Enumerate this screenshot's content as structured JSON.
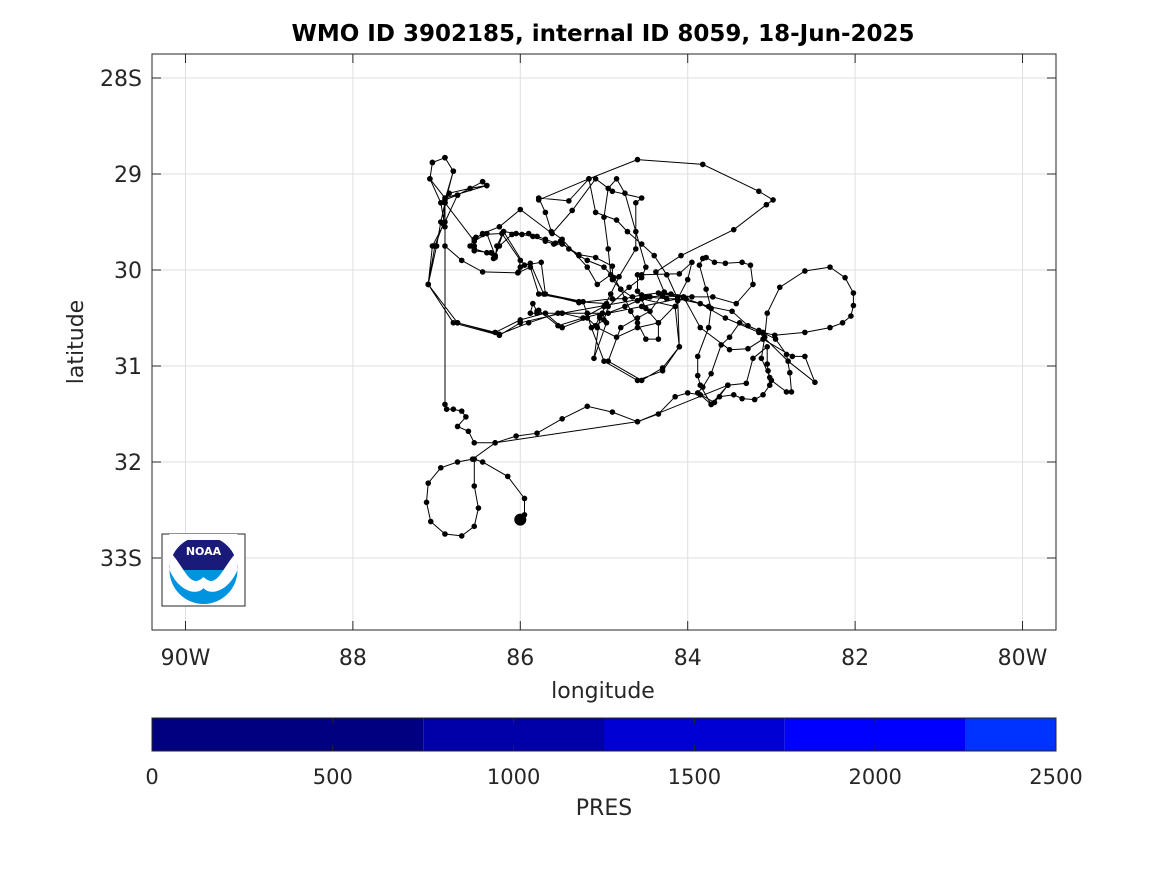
{
  "chart_data": {
    "type": "scatter",
    "title": "WMO ID 3902185, internal ID 8059, 18-Jun-2025",
    "xlabel": "longitude",
    "ylabel": "latitude",
    "xlim": [
      -90.4,
      -79.6
    ],
    "ylim": [
      -33.75,
      -27.75
    ],
    "x_ticks": [
      {
        "value": -90,
        "label": "90W"
      },
      {
        "value": -88,
        "label": "88"
      },
      {
        "value": -86,
        "label": "86"
      },
      {
        "value": -84,
        "label": "84"
      },
      {
        "value": -82,
        "label": "82"
      },
      {
        "value": -80,
        "label": "80W"
      }
    ],
    "y_ticks": [
      {
        "value": -28,
        "label": "28S"
      },
      {
        "value": -29,
        "label": "29"
      },
      {
        "value": -30,
        "label": "30"
      },
      {
        "value": -31,
        "label": "31"
      },
      {
        "value": -32,
        "label": "32"
      },
      {
        "value": -33,
        "label": "33S"
      }
    ],
    "grid": true,
    "marker_color": "#000000",
    "track": [
      [
        -85.78,
        -29.27
      ],
      [
        -85.18,
        -29.05
      ],
      [
        -84.6,
        -28.85
      ],
      [
        -83.82,
        -28.9
      ],
      [
        -83.15,
        -29.18
      ],
      [
        -82.98,
        -29.27
      ],
      [
        -83.06,
        -29.32
      ],
      [
        -83.45,
        -29.58
      ],
      [
        -84.08,
        -29.85
      ],
      [
        -84.38,
        -30.02
      ],
      [
        -84.28,
        -30.23
      ],
      [
        -84.12,
        -30.28
      ],
      [
        -84.12,
        -30.32
      ],
      [
        -84.02,
        -30.3
      ],
      [
        -83.75,
        -30.38
      ],
      [
        -83.47,
        -30.43
      ],
      [
        -83.28,
        -30.58
      ],
      [
        -83.1,
        -30.65
      ],
      [
        -82.96,
        -30.68
      ],
      [
        -82.6,
        -30.65
      ],
      [
        -82.3,
        -30.6
      ],
      [
        -82.15,
        -30.55
      ],
      [
        -82.05,
        -30.48
      ],
      [
        -82.02,
        -30.37
      ],
      [
        -82.02,
        -30.24
      ],
      [
        -82.12,
        -30.08
      ],
      [
        -82.3,
        -29.97
      ],
      [
        -82.6,
        -30.01
      ],
      [
        -82.9,
        -30.18
      ],
      [
        -83.05,
        -30.45
      ],
      [
        -83.08,
        -30.7
      ],
      [
        -83.12,
        -30.92
      ],
      [
        -83.0,
        -31.15
      ],
      [
        -82.82,
        -31.27
      ],
      [
        -82.76,
        -31.27
      ],
      [
        -82.78,
        -31.07
      ],
      [
        -82.82,
        -30.88
      ],
      [
        -82.95,
        -30.72
      ],
      [
        -83.15,
        -30.63
      ],
      [
        -83.38,
        -30.55
      ],
      [
        -83.5,
        -30.7
      ],
      [
        -83.6,
        -30.78
      ],
      [
        -83.72,
        -31.08
      ],
      [
        -83.82,
        -31.22
      ],
      [
        -83.88,
        -31.28
      ],
      [
        -83.68,
        -31.38
      ],
      [
        -83.52,
        -31.2
      ],
      [
        -83.3,
        -31.18
      ],
      [
        -83.22,
        -30.92
      ],
      [
        -83.05,
        -30.8
      ],
      [
        -83.05,
        -30.98
      ],
      [
        -83.04,
        -31.05
      ],
      [
        -83.02,
        -31.12
      ],
      [
        -83.02,
        -31.2
      ],
      [
        -83.1,
        -31.3
      ],
      [
        -83.2,
        -31.35
      ],
      [
        -83.35,
        -31.34
      ],
      [
        -83.45,
        -31.3
      ],
      [
        -83.62,
        -31.32
      ],
      [
        -83.72,
        -31.4
      ],
      [
        -83.85,
        -31.2
      ],
      [
        -83.88,
        -31.1
      ],
      [
        -83.88,
        -30.9
      ],
      [
        -83.75,
        -30.6
      ],
      [
        -83.72,
        -30.4
      ],
      [
        -83.78,
        -30.2
      ],
      [
        -83.86,
        -29.95
      ],
      [
        -83.82,
        -29.88
      ],
      [
        -83.78,
        -29.87
      ],
      [
        -83.68,
        -29.92
      ],
      [
        -83.55,
        -29.93
      ],
      [
        -83.35,
        -29.92
      ],
      [
        -83.25,
        -29.95
      ],
      [
        -83.22,
        -30.15
      ],
      [
        -83.42,
        -30.35
      ],
      [
        -83.7,
        -30.28
      ],
      [
        -83.95,
        -30.28
      ],
      [
        -84.2,
        -30.25
      ],
      [
        -84.35,
        -30.24
      ],
      [
        -84.55,
        -30.26
      ],
      [
        -84.66,
        -30.28
      ],
      [
        -84.75,
        -30.3
      ],
      [
        -84.9,
        -30.3
      ],
      [
        -85.3,
        -30.34
      ],
      [
        -85.72,
        -30.25
      ],
      [
        -85.88,
        -29.93
      ],
      [
        -86.0,
        -29.97
      ],
      [
        -86.02,
        -30.02
      ],
      [
        -86.0,
        -29.9
      ],
      [
        -86.22,
        -29.62
      ],
      [
        -86.45,
        -29.63
      ],
      [
        -86.53,
        -29.66
      ],
      [
        -86.55,
        -29.75
      ],
      [
        -86.55,
        -29.8
      ],
      [
        -86.35,
        -29.82
      ],
      [
        -86.32,
        -29.88
      ],
      [
        -86.25,
        -29.75
      ],
      [
        -86.1,
        -29.63
      ],
      [
        -85.98,
        -29.63
      ],
      [
        -85.85,
        -29.65
      ],
      [
        -85.7,
        -29.7
      ],
      [
        -85.6,
        -29.73
      ],
      [
        -85.5,
        -29.73
      ],
      [
        -85.3,
        -29.84
      ],
      [
        -85.1,
        -29.87
      ],
      [
        -84.9,
        -29.96
      ],
      [
        -84.9,
        -30.1
      ],
      [
        -84.8,
        -30.2
      ],
      [
        -84.68,
        -30.43
      ],
      [
        -84.6,
        -30.55
      ],
      [
        -84.5,
        -30.72
      ],
      [
        -84.35,
        -30.72
      ],
      [
        -84.35,
        -30.55
      ],
      [
        -84.5,
        -30.4
      ],
      [
        -84.6,
        -30.22
      ],
      [
        -84.6,
        -30.05
      ],
      [
        -84.55,
        -30.05
      ],
      [
        -84.1,
        -30.04
      ],
      [
        -83.95,
        -29.92
      ],
      [
        -84.0,
        -30.1
      ],
      [
        -84.12,
        -30.3
      ],
      [
        -84.25,
        -30.3
      ],
      [
        -84.5,
        -30.28
      ],
      [
        -84.75,
        -30.38
      ],
      [
        -85.05,
        -30.48
      ],
      [
        -85.1,
        -30.58
      ],
      [
        -85.0,
        -30.52
      ],
      [
        -84.95,
        -30.38
      ],
      [
        -84.7,
        -30.18
      ],
      [
        -84.55,
        -30.08
      ],
      [
        -84.5,
        -29.97
      ],
      [
        -84.62,
        -29.6
      ],
      [
        -84.75,
        -29.2
      ],
      [
        -84.85,
        -29.05
      ],
      [
        -84.95,
        -29.15
      ],
      [
        -85.0,
        -29.45
      ],
      [
        -84.95,
        -29.78
      ],
      [
        -84.92,
        -30.05
      ],
      [
        -85.08,
        -30.15
      ],
      [
        -85.2,
        -29.97
      ],
      [
        -85.5,
        -29.68
      ],
      [
        -85.63,
        -29.6
      ],
      [
        -85.7,
        -29.4
      ],
      [
        -85.78,
        -29.25
      ],
      [
        -85.42,
        -29.28
      ],
      [
        -85.18,
        -29.05
      ],
      [
        -85.1,
        -29.4
      ],
      [
        -84.85,
        -29.48
      ],
      [
        -84.72,
        -29.6
      ],
      [
        -84.55,
        -29.73
      ],
      [
        -84.4,
        -29.85
      ],
      [
        -84.25,
        -30.05
      ],
      [
        -84.12,
        -30.3
      ],
      [
        -84.1,
        -30.8
      ],
      [
        -84.3,
        -31.02
      ],
      [
        -84.55,
        -31.15
      ],
      [
        -84.95,
        -30.95
      ],
      [
        -84.8,
        -30.6
      ],
      [
        -84.6,
        -30.5
      ],
      [
        -84.45,
        -30.43
      ],
      [
        -84.3,
        -30.25
      ],
      [
        -84.05,
        -30.28
      ],
      [
        -83.85,
        -30.6
      ],
      [
        -83.5,
        -30.83
      ],
      [
        -83.28,
        -30.82
      ],
      [
        -83.1,
        -30.72
      ],
      [
        -82.75,
        -30.9
      ],
      [
        -82.6,
        -30.9
      ],
      [
        -82.48,
        -31.17
      ],
      [
        -82.8,
        -30.95
      ],
      [
        -83.15,
        -30.65
      ],
      [
        -83.55,
        -30.5
      ],
      [
        -83.85,
        -30.35
      ],
      [
        -84.12,
        -30.3
      ],
      [
        -84.55,
        -30.38
      ],
      [
        -84.95,
        -30.45
      ],
      [
        -85.2,
        -30.45
      ],
      [
        -85.55,
        -30.45
      ],
      [
        -85.9,
        -30.55
      ],
      [
        -86.25,
        -30.67
      ],
      [
        -86.75,
        -30.55
      ],
      [
        -87.1,
        -30.15
      ],
      [
        -87.0,
        -29.75
      ],
      [
        -86.95,
        -29.5
      ],
      [
        -86.9,
        -29.3
      ],
      [
        -86.85,
        -29.2
      ],
      [
        -86.6,
        -29.15
      ],
      [
        -86.4,
        -29.12
      ],
      [
        -86.45,
        -29.08
      ],
      [
        -86.75,
        -29.22
      ],
      [
        -86.9,
        -29.27
      ],
      [
        -86.8,
        -28.97
      ],
      [
        -86.9,
        -28.83
      ],
      [
        -87.05,
        -28.88
      ],
      [
        -87.08,
        -29.05
      ],
      [
        -86.95,
        -29.3
      ],
      [
        -86.9,
        -29.55
      ],
      [
        -86.9,
        -29.75
      ],
      [
        -86.7,
        -29.9
      ],
      [
        -86.45,
        -30.02
      ],
      [
        -86.03,
        -30.03
      ],
      [
        -85.88,
        -29.97
      ],
      [
        -85.78,
        -30.25
      ],
      [
        -85.3,
        -30.33
      ],
      [
        -84.97,
        -30.35
      ],
      [
        -85.05,
        -30.5
      ],
      [
        -85.12,
        -30.92
      ],
      [
        -84.97,
        -30.55
      ],
      [
        -85.02,
        -30.45
      ],
      [
        -85.25,
        -30.5
      ],
      [
        -85.55,
        -30.58
      ],
      [
        -85.78,
        -30.42
      ],
      [
        -85.8,
        -30.43
      ],
      [
        -85.85,
        -30.35
      ],
      [
        -85.88,
        -30.45
      ],
      [
        -85.8,
        -30.45
      ],
      [
        -85.5,
        -30.45
      ],
      [
        -85.25,
        -30.5
      ],
      [
        -85.0,
        -30.38
      ],
      [
        -84.92,
        -30.25
      ],
      [
        -84.82,
        -30.07
      ],
      [
        -84.62,
        -29.78
      ],
      [
        -84.62,
        -29.3
      ],
      [
        -84.55,
        -29.25
      ],
      [
        -84.9,
        -29.18
      ],
      [
        -85.1,
        -29.05
      ],
      [
        -85.38,
        -29.38
      ],
      [
        -85.62,
        -29.62
      ],
      [
        -86.0,
        -29.37
      ],
      [
        -86.25,
        -29.55
      ],
      [
        -86.45,
        -29.62
      ],
      [
        -86.55,
        -29.68
      ],
      [
        -86.6,
        -29.75
      ],
      [
        -86.55,
        -29.78
      ],
      [
        -86.4,
        -29.82
      ],
      [
        -86.3,
        -29.87
      ],
      [
        -86.28,
        -29.75
      ],
      [
        -86.2,
        -29.6
      ],
      [
        -86.05,
        -29.62
      ],
      [
        -85.9,
        -29.62
      ],
      [
        -85.8,
        -29.65
      ],
      [
        -85.7,
        -29.68
      ],
      [
        -85.58,
        -29.72
      ],
      [
        -85.52,
        -29.7
      ],
      [
        -85.42,
        -29.78
      ],
      [
        -85.3,
        -29.85
      ],
      [
        -85.2,
        -29.9
      ],
      [
        -85.0,
        -29.97
      ],
      [
        -84.88,
        -30.08
      ],
      [
        -84.8,
        -30.2
      ],
      [
        -84.6,
        -30.32
      ],
      [
        -84.45,
        -30.28
      ],
      [
        -84.3,
        -30.27
      ],
      [
        -84.05,
        -30.28
      ],
      [
        -84.35,
        -30.55
      ],
      [
        -84.6,
        -30.6
      ],
      [
        -84.85,
        -30.7
      ],
      [
        -85.08,
        -30.6
      ],
      [
        -85.2,
        -30.5
      ],
      [
        -85.5,
        -30.6
      ],
      [
        -85.7,
        -30.45
      ],
      [
        -86.0,
        -30.52
      ],
      [
        -86.3,
        -30.65
      ],
      [
        -86.75,
        -30.55
      ],
      [
        -87.1,
        -30.15
      ],
      [
        -87.05,
        -29.75
      ],
      [
        -86.9,
        -29.5
      ],
      [
        -86.75,
        -29.22
      ],
      [
        -86.45,
        -29.08
      ],
      [
        -86.4,
        -29.12
      ],
      [
        -86.9,
        -29.25
      ],
      [
        -87.08,
        -29.05
      ],
      [
        -87.05,
        -28.88
      ],
      [
        -86.9,
        -28.83
      ],
      [
        -86.8,
        -28.97
      ],
      [
        -86.9,
        -29.3
      ],
      [
        -86.55,
        -29.7
      ],
      [
        -86.4,
        -29.62
      ],
      [
        -86.3,
        -29.85
      ],
      [
        -86.2,
        -29.6
      ],
      [
        -85.95,
        -29.95
      ],
      [
        -85.75,
        -29.92
      ],
      [
        -85.7,
        -30.25
      ],
      [
        -85.25,
        -30.33
      ],
      [
        -85.15,
        -30.6
      ],
      [
        -85.0,
        -30.95
      ],
      [
        -84.6,
        -31.15
      ],
      [
        -84.3,
        -31.05
      ],
      [
        -84.1,
        -30.8
      ],
      [
        -84.15,
        -30.38
      ],
      [
        -84.55,
        -30.3
      ],
      [
        -85.5,
        -30.45
      ],
      [
        -86.0,
        -30.55
      ],
      [
        -86.25,
        -30.68
      ],
      [
        -86.8,
        -30.55
      ],
      [
        -87.1,
        -30.15
      ],
      [
        -87.02,
        -29.75
      ],
      [
        -86.92,
        -29.52
      ],
      [
        -86.9,
        -29.3
      ],
      [
        -86.9,
        -31.4
      ],
      [
        -86.88,
        -31.45
      ],
      [
        -86.8,
        -31.45
      ],
      [
        -86.7,
        -31.47
      ],
      [
        -86.65,
        -31.53
      ],
      [
        -86.75,
        -31.63
      ],
      [
        -86.62,
        -31.68
      ],
      [
        -86.55,
        -31.8
      ],
      [
        -86.3,
        -31.8
      ],
      [
        -86.05,
        -31.73
      ],
      [
        -85.8,
        -31.7
      ],
      [
        -85.5,
        -31.55
      ],
      [
        -85.2,
        -31.42
      ],
      [
        -84.9,
        -31.48
      ],
      [
        -84.6,
        -31.58
      ],
      [
        -84.35,
        -31.5
      ],
      [
        -84.15,
        -31.32
      ],
      [
        -84.0,
        -31.28
      ],
      [
        -83.85,
        -31.3
      ],
      [
        -83.72,
        -31.4
      ],
      [
        -83.52,
        -31.2
      ],
      [
        -84.6,
        -31.58
      ],
      [
        -86.3,
        -31.8
      ],
      [
        -86.57,
        -31.97
      ],
      [
        -86.75,
        -32.0
      ],
      [
        -86.95,
        -32.06
      ],
      [
        -87.1,
        -32.22
      ],
      [
        -87.12,
        -32.42
      ],
      [
        -87.07,
        -32.62
      ],
      [
        -86.9,
        -32.75
      ],
      [
        -86.7,
        -32.77
      ],
      [
        -86.55,
        -32.67
      ],
      [
        -86.5,
        -32.48
      ],
      [
        -86.55,
        -32.25
      ],
      [
        -86.55,
        -31.97
      ],
      [
        -86.45,
        -32.0
      ],
      [
        -86.15,
        -32.15
      ],
      [
        -85.95,
        -32.38
      ],
      [
        -85.95,
        -32.55
      ],
      [
        -86.0,
        -32.6
      ]
    ],
    "last_position": [
      -86.0,
      -32.6
    ],
    "colorbar": {
      "label": "PRES",
      "range": [
        0,
        2500
      ],
      "ticks": [
        "0",
        "500",
        "1000",
        "1500",
        "2000",
        "2500"
      ],
      "segments": [
        {
          "from": 0,
          "to": 750,
          "color": "#000080"
        },
        {
          "from": 750,
          "to": 1250,
          "color": "#0000a8"
        },
        {
          "from": 1250,
          "to": 1750,
          "color": "#0000d4"
        },
        {
          "from": 1750,
          "to": 2250,
          "color": "#0000ff"
        },
        {
          "from": 2250,
          "to": 2500,
          "color": "#0033ff"
        }
      ]
    }
  },
  "logo": {
    "text": "NOAA",
    "icon": "noaa-logo-icon",
    "colors": {
      "top": "#1a1a7a",
      "bottom": "#0093e0",
      "wave": "#ffffff"
    }
  }
}
